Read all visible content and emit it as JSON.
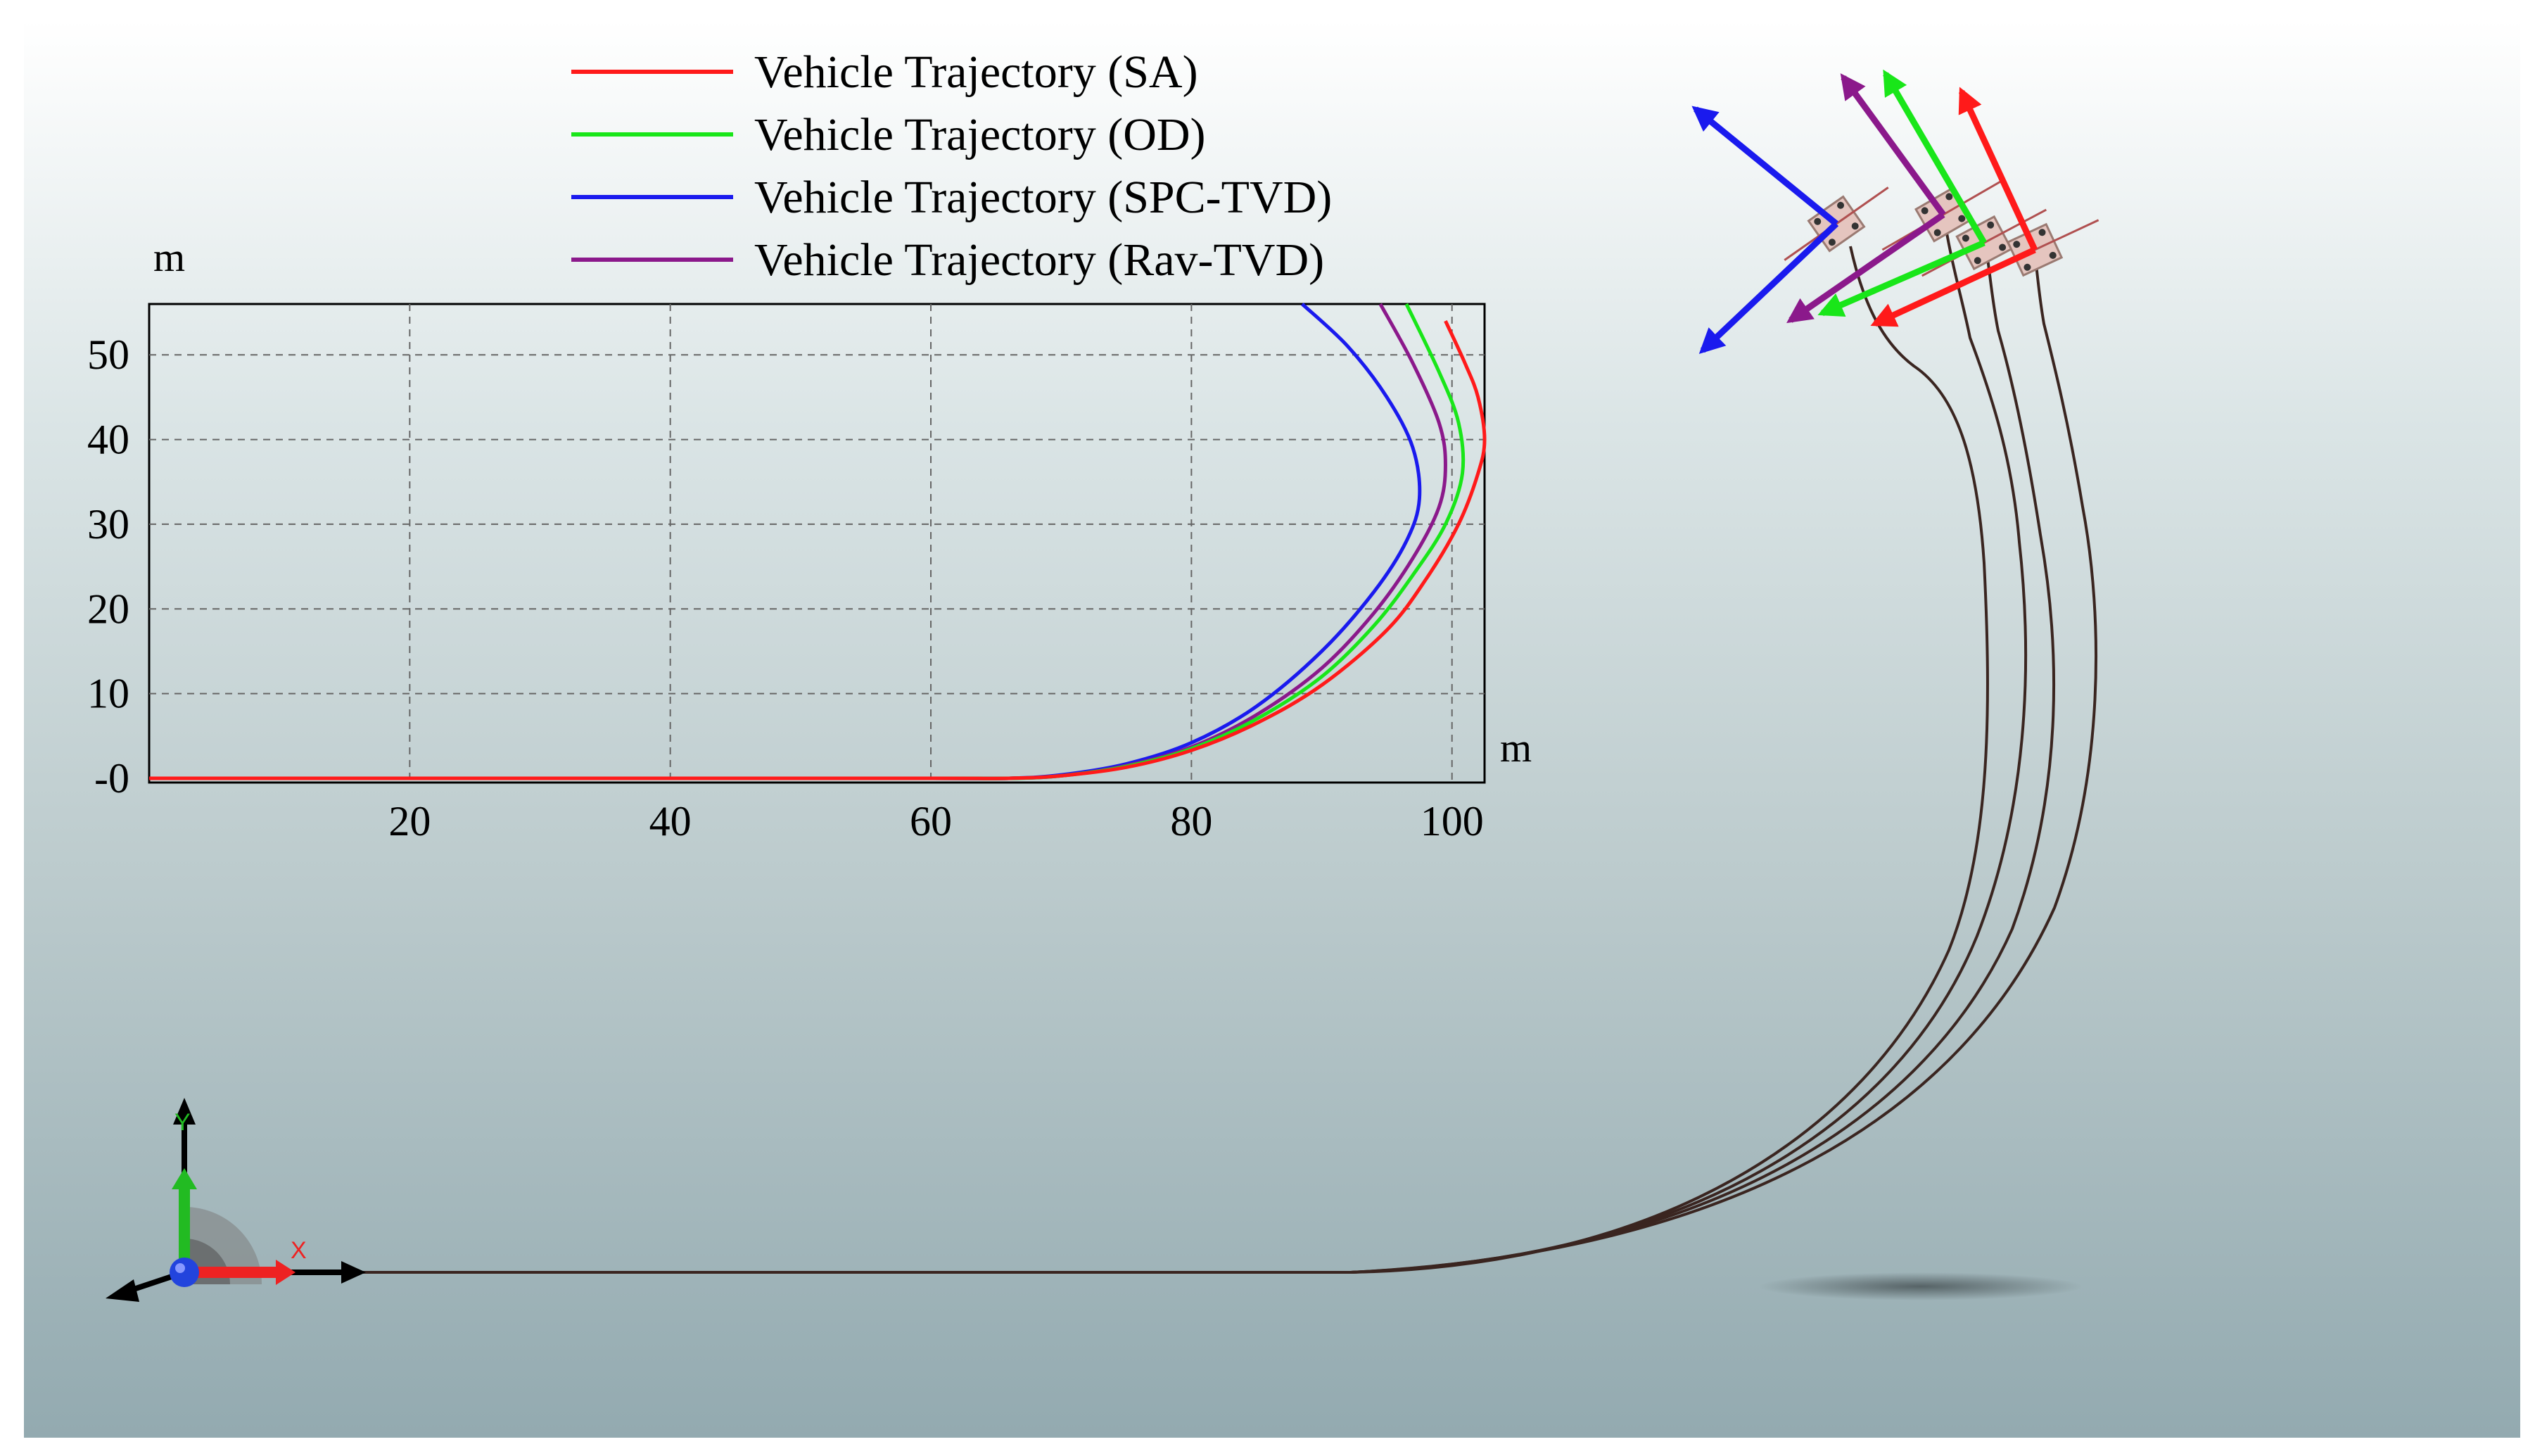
{
  "colors": {
    "SA": "#ff1a1a",
    "OD": "#19e619",
    "SPC-TVD": "#1a1aee",
    "Rav-TVD": "#8b198b",
    "sim_path": "#3a2520",
    "bg_top": "#ffffff",
    "bg_bottom": "#93aab0"
  },
  "legend": [
    {
      "key": "SA",
      "label": "Vehicle Trajectory (SA)"
    },
    {
      "key": "OD",
      "label": "Vehicle Trajectory (OD)"
    },
    {
      "key": "SPC-TVD",
      "label": "Vehicle Trajectory (SPC-TVD)"
    },
    {
      "key": "Rav-TVD",
      "label": "Vehicle Trajectory (Rav-TVD)"
    }
  ],
  "sim_view": {
    "axis_triad": {
      "x_label": "X",
      "y_label": "Y"
    },
    "icons": [
      "axis-triad-icon",
      "vehicle-icon",
      "heading-arrow-icon"
    ]
  },
  "chart_data": {
    "type": "line",
    "title": "",
    "xlabel": "m",
    "ylabel": "m",
    "xlim": [
      0,
      102.5
    ],
    "ylim": [
      -0.5,
      56
    ],
    "x_ticks": [
      20,
      40,
      60,
      80,
      100
    ],
    "x_tick_labels": [
      "20",
      "40",
      "60",
      "80",
      "100"
    ],
    "y_ticks": [
      0,
      10,
      20,
      30,
      40,
      50
    ],
    "y_tick_labels": [
      "-0",
      "10",
      "20",
      "30",
      "40",
      "50"
    ],
    "grid": true,
    "legend_position": "top",
    "series": [
      {
        "key": "SA",
        "name": "Vehicle Trajectory (SA)",
        "points": [
          [
            0,
            0
          ],
          [
            20,
            0
          ],
          [
            40,
            0
          ],
          [
            60,
            0
          ],
          [
            66,
            0
          ],
          [
            70,
            0.3
          ],
          [
            75,
            1.3
          ],
          [
            80,
            3.3
          ],
          [
            85,
            6.5
          ],
          [
            90,
            11
          ],
          [
            95,
            17.5
          ],
          [
            98,
            23.5
          ],
          [
            100.5,
            30
          ],
          [
            102,
            36
          ],
          [
            102.5,
            40
          ],
          [
            102,
            45
          ],
          [
            101,
            49
          ],
          [
            99.5,
            54
          ]
        ]
      },
      {
        "key": "OD",
        "name": "Vehicle Trajectory (OD)",
        "points": [
          [
            0,
            0
          ],
          [
            20,
            0
          ],
          [
            40,
            0
          ],
          [
            60,
            0
          ],
          [
            66,
            0
          ],
          [
            70,
            0.3
          ],
          [
            75,
            1.4
          ],
          [
            80,
            3.5
          ],
          [
            85,
            7
          ],
          [
            90,
            12
          ],
          [
            94,
            18
          ],
          [
            97,
            24
          ],
          [
            99.5,
            30
          ],
          [
            100.8,
            36
          ],
          [
            100.5,
            42
          ],
          [
            99,
            48
          ],
          [
            96.5,
            56
          ]
        ]
      },
      {
        "key": "SPC-TVD",
        "name": "Vehicle Trajectory (SPC-TVD)",
        "points": [
          [
            0,
            0
          ],
          [
            20,
            0
          ],
          [
            40,
            0
          ],
          [
            60,
            0
          ],
          [
            66,
            0
          ],
          [
            70,
            0.4
          ],
          [
            75,
            1.7
          ],
          [
            80,
            4.2
          ],
          [
            85,
            8.5
          ],
          [
            90,
            15
          ],
          [
            94,
            22
          ],
          [
            96.5,
            28
          ],
          [
            97.5,
            33
          ],
          [
            97,
            39
          ],
          [
            95,
            45
          ],
          [
            92,
            51
          ],
          [
            88.5,
            56
          ]
        ]
      },
      {
        "key": "Rav-TVD",
        "name": "Vehicle Trajectory (Rav-TVD)",
        "points": [
          [
            0,
            0
          ],
          [
            20,
            0
          ],
          [
            40,
            0
          ],
          [
            60,
            0
          ],
          [
            66,
            0
          ],
          [
            70,
            0.3
          ],
          [
            75,
            1.5
          ],
          [
            80,
            3.7
          ],
          [
            85,
            7.5
          ],
          [
            90,
            13
          ],
          [
            94,
            19.5
          ],
          [
            97,
            26
          ],
          [
            99,
            32
          ],
          [
            99.5,
            37
          ],
          [
            99,
            42
          ],
          [
            97,
            49
          ],
          [
            94.5,
            56
          ]
        ]
      }
    ]
  }
}
